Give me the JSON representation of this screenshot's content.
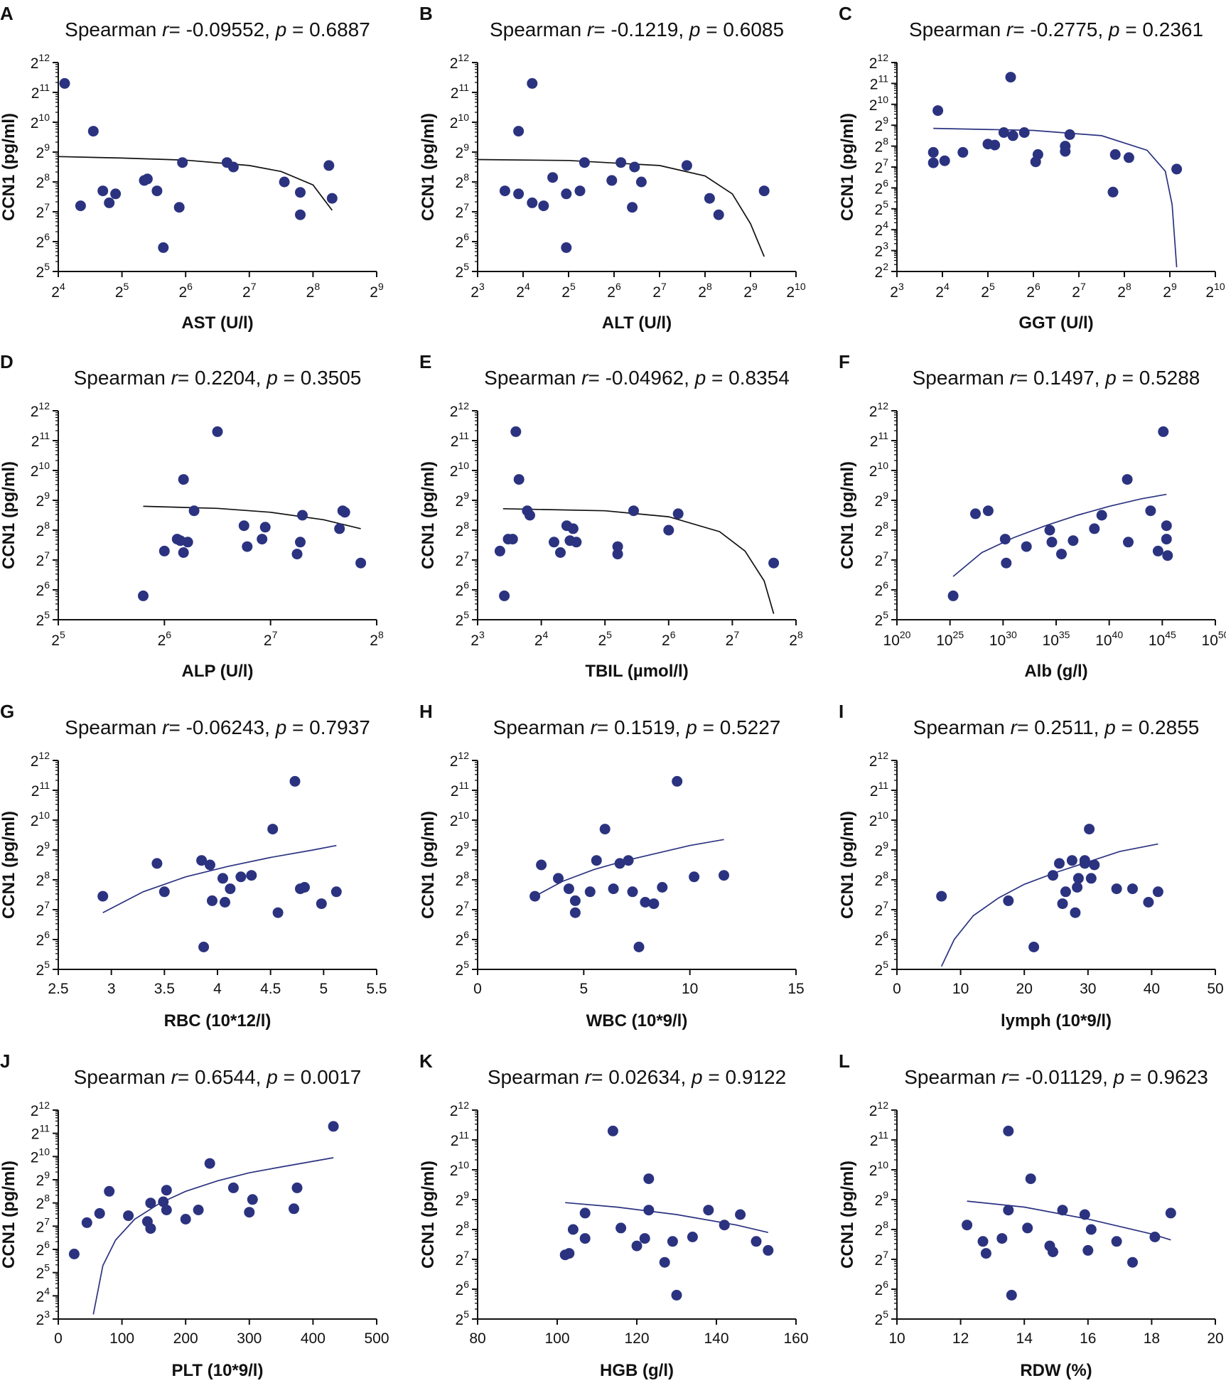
{
  "chart_data": [
    {
      "panel": "A",
      "type": "scatter",
      "title": {
        "prefix": "Spearman ",
        "r_symbol": "r",
        "r_value": "= -0.09552, ",
        "p_symbol": "p",
        "p_value": " = 0.6887"
      },
      "xlabel": "AST (U/l)",
      "ylabel": "CCN1 (pg/ml)",
      "xscale": "log2",
      "xlim": [
        4,
        9
      ],
      "ylim": [
        5,
        12
      ],
      "fit_color": "#111111",
      "x": [
        4.1,
        4.35,
        4.55,
        4.7,
        4.8,
        4.9,
        5.35,
        5.4,
        5.55,
        5.65,
        5.9,
        5.95,
        6.65,
        6.75,
        7.55,
        7.8,
        7.8,
        8.25,
        8.3
      ],
      "y": [
        11.3,
        7.2,
        9.7,
        7.7,
        7.3,
        7.6,
        8.05,
        8.1,
        7.7,
        5.8,
        7.15,
        8.65,
        8.65,
        8.5,
        8.0,
        7.65,
        6.9,
        8.55,
        7.45
      ],
      "fit": {
        "x": [
          4.0,
          5.0,
          6.0,
          7.0,
          7.5,
          8.0,
          8.3
        ],
        "y": [
          8.85,
          8.8,
          8.73,
          8.55,
          8.35,
          7.9,
          7.05
        ]
      }
    },
    {
      "panel": "B",
      "type": "scatter",
      "title": {
        "prefix": "Spearman ",
        "r_symbol": "r",
        "r_value": "= -0.1219, ",
        "p_symbol": "p",
        "p_value": " = 0.6085"
      },
      "xlabel": "ALT (U/l)",
      "ylabel": "CCN1 (pg/ml)",
      "xscale": "log2",
      "xlim": [
        3,
        10
      ],
      "ylim": [
        5,
        12
      ],
      "fit_color": "#111111",
      "x": [
        3.6,
        3.9,
        3.9,
        4.2,
        4.2,
        4.45,
        4.65,
        4.95,
        4.95,
        5.25,
        5.35,
        5.95,
        6.15,
        6.4,
        6.45,
        6.6,
        7.6,
        8.1,
        8.3,
        9.3
      ],
      "y": [
        7.7,
        9.7,
        7.6,
        11.3,
        7.3,
        7.2,
        8.15,
        7.6,
        5.8,
        7.7,
        8.65,
        8.05,
        8.65,
        7.15,
        8.5,
        8.0,
        8.55,
        7.45,
        6.9,
        7.7
      ],
      "fit": {
        "x": [
          3.0,
          5.0,
          7.0,
          8.0,
          8.6,
          9.0,
          9.3
        ],
        "y": [
          8.75,
          8.72,
          8.55,
          8.2,
          7.6,
          6.6,
          5.5
        ]
      }
    },
    {
      "panel": "C",
      "type": "scatter",
      "title": {
        "prefix": "Spearman ",
        "r_symbol": "r",
        "r_value": "= -0.2775, ",
        "p_symbol": "p",
        "p_value": " = 0.2361"
      },
      "xlabel": "GGT (U/l)",
      "ylabel": "CCN1 (pg/ml)",
      "xscale": "log2",
      "xlim": [
        3,
        10
      ],
      "ylim": [
        2,
        12
      ],
      "fit_color": "#2b3380",
      "x": [
        3.8,
        3.8,
        3.9,
        4.05,
        4.45,
        5.0,
        5.15,
        5.35,
        5.5,
        5.55,
        5.8,
        6.05,
        6.1,
        6.7,
        6.7,
        6.8,
        7.75,
        7.8,
        8.1,
        9.15
      ],
      "y": [
        7.7,
        7.2,
        9.7,
        7.3,
        7.7,
        8.1,
        8.05,
        8.65,
        11.3,
        8.5,
        8.65,
        7.25,
        7.6,
        8.0,
        7.75,
        8.55,
        5.8,
        7.6,
        7.45,
        6.9
      ],
      "fit": {
        "x": [
          3.8,
          6.0,
          7.5,
          8.5,
          8.9,
          9.05,
          9.15
        ],
        "y": [
          8.85,
          8.75,
          8.5,
          7.8,
          6.8,
          5.2,
          2.2
        ]
      }
    },
    {
      "panel": "D",
      "type": "scatter",
      "title": {
        "prefix": "Spearman ",
        "r_symbol": "r",
        "r_value": "= 0.2204, ",
        "p_symbol": "p",
        "p_value": " = 0.3505"
      },
      "xlabel": "ALP (U/l)",
      "ylabel": "CCN1 (pg/ml)",
      "xscale": "log2",
      "xlim": [
        5,
        8
      ],
      "ylim": [
        5,
        12
      ],
      "fit_color": "#111111",
      "x": [
        5.8,
        6.0,
        6.12,
        6.15,
        6.18,
        6.18,
        6.22,
        6.28,
        6.5,
        6.75,
        6.78,
        6.92,
        6.95,
        7.25,
        7.28,
        7.3,
        7.65,
        7.68,
        7.7,
        7.85
      ],
      "y": [
        5.8,
        7.3,
        7.7,
        7.65,
        9.7,
        7.25,
        7.6,
        8.65,
        11.3,
        8.15,
        7.45,
        7.7,
        8.1,
        7.2,
        7.6,
        8.5,
        8.05,
        8.65,
        8.6,
        6.9
      ],
      "fit": {
        "x": [
          5.8,
          6.5,
          7.0,
          7.5,
          7.85
        ],
        "y": [
          8.8,
          8.73,
          8.6,
          8.35,
          8.05
        ]
      }
    },
    {
      "panel": "E",
      "type": "scatter",
      "title": {
        "prefix": "Spearman ",
        "r_symbol": "r",
        "r_value": "= -0.04962, ",
        "p_symbol": "p",
        "p_value": " = 0.8354"
      },
      "xlabel": "TBIL (µmol/l)",
      "ylabel": "CCN1 (pg/ml)",
      "xscale": "log2",
      "xlim": [
        3,
        8
      ],
      "ylim": [
        5,
        12
      ],
      "fit_color": "#111111",
      "x": [
        3.35,
        3.42,
        3.48,
        3.55,
        3.6,
        3.65,
        3.78,
        3.82,
        4.2,
        4.3,
        4.4,
        4.45,
        4.5,
        4.55,
        5.2,
        5.2,
        5.45,
        6.0,
        6.15,
        7.65
      ],
      "y": [
        7.3,
        5.8,
        7.7,
        7.7,
        11.3,
        9.7,
        8.65,
        8.5,
        7.6,
        7.25,
        8.15,
        7.65,
        8.05,
        7.6,
        7.45,
        7.2,
        8.65,
        8.0,
        8.55,
        6.9
      ],
      "fit": {
        "x": [
          3.4,
          5.0,
          6.0,
          6.8,
          7.2,
          7.5,
          7.65
        ],
        "y": [
          8.72,
          8.65,
          8.45,
          7.95,
          7.3,
          6.3,
          5.2
        ]
      }
    },
    {
      "panel": "F",
      "type": "scatter",
      "title": {
        "prefix": "Spearman ",
        "r_symbol": "r",
        "r_value": "= 0.1497, ",
        "p_symbol": "p",
        "p_value": " = 0.5288"
      },
      "xlabel": "Alb (g/l)",
      "ylabel": "CCN1 (pg/ml)",
      "xscale": "log10",
      "xlim": [
        20,
        50
      ],
      "ylim": [
        5,
        12
      ],
      "fit_color": "#2b3380",
      "x": [
        25.3,
        27.4,
        28.6,
        30.2,
        30.3,
        32.2,
        34.4,
        34.6,
        35.5,
        36.6,
        38.6,
        39.3,
        41.7,
        41.8,
        43.9,
        44.6,
        45.1,
        45.4,
        45.4,
        45.5
      ],
      "y": [
        5.8,
        8.55,
        8.65,
        7.7,
        6.9,
        7.45,
        8.0,
        7.6,
        7.2,
        7.65,
        8.05,
        8.5,
        9.7,
        7.6,
        8.65,
        7.3,
        11.3,
        8.15,
        7.7,
        7.15
      ],
      "fit": {
        "x": [
          25.3,
          28,
          31,
          34,
          37,
          40,
          43,
          45.4
        ],
        "y": [
          6.45,
          7.25,
          7.75,
          8.15,
          8.5,
          8.8,
          9.05,
          9.2
        ]
      }
    },
    {
      "panel": "G",
      "type": "scatter",
      "title": {
        "prefix": "Spearman ",
        "r_symbol": "r",
        "r_value": "= -0.06243, ",
        "p_symbol": "p",
        "p_value": " = 0.7937"
      },
      "xlabel": "RBC (10*12/l)",
      "ylabel": "CCN1 (pg/ml)",
      "xscale": "linear",
      "xlim": [
        2.5,
        5.5
      ],
      "ylim": [
        5,
        12
      ],
      "fit_color": "#2b3380",
      "x": [
        2.92,
        3.43,
        3.5,
        3.85,
        3.87,
        3.93,
        3.95,
        4.05,
        4.07,
        4.12,
        4.22,
        4.32,
        4.52,
        4.57,
        4.73,
        4.78,
        4.82,
        4.98,
        5.12
      ],
      "y": [
        7.45,
        8.55,
        7.6,
        8.65,
        5.75,
        8.5,
        7.3,
        8.05,
        7.25,
        7.7,
        8.1,
        8.15,
        9.7,
        6.9,
        11.3,
        7.7,
        7.75,
        7.2,
        7.6
      ],
      "fit": {
        "x": [
          2.92,
          3.3,
          3.7,
          4.1,
          4.5,
          4.9,
          5.12
        ],
        "y": [
          6.9,
          7.6,
          8.1,
          8.45,
          8.75,
          9.0,
          9.15
        ]
      }
    },
    {
      "panel": "H",
      "type": "scatter",
      "title": {
        "prefix": "Spearman ",
        "r_symbol": "r",
        "r_value": "= 0.1519, ",
        "p_symbol": "p",
        "p_value": " = 0.5227"
      },
      "xlabel": "WBC  (10*9/l)",
      "ylabel": "CCN1 (pg/ml)",
      "xscale": "linear",
      "xlim": [
        0,
        15
      ],
      "ylim": [
        5,
        12
      ],
      "fit_color": "#2b3380",
      "x": [
        2.7,
        3.0,
        3.8,
        4.3,
        4.6,
        4.6,
        5.3,
        5.6,
        6.0,
        6.4,
        6.7,
        7.1,
        7.3,
        7.6,
        7.9,
        8.3,
        8.7,
        9.4,
        10.2,
        11.6
      ],
      "y": [
        7.45,
        8.5,
        8.05,
        7.7,
        6.9,
        7.3,
        7.6,
        8.65,
        9.7,
        7.7,
        8.55,
        8.65,
        7.6,
        5.75,
        7.25,
        7.2,
        7.75,
        11.3,
        8.1,
        8.15
      ],
      "fit": {
        "x": [
          2.7,
          4,
          5.5,
          7,
          8.5,
          10,
          11.6
        ],
        "y": [
          7.45,
          7.95,
          8.35,
          8.65,
          8.9,
          9.15,
          9.35
        ]
      }
    },
    {
      "panel": "I",
      "type": "scatter",
      "title": {
        "prefix": "Spearman ",
        "r_symbol": "r",
        "r_value": "= 0.2511, ",
        "p_symbol": "p",
        "p_value": " = 0.2855"
      },
      "xlabel": "lymph (10*9/l)",
      "ylabel": "CCN1 (pg/ml)",
      "xscale": "linear",
      "xlim": [
        0,
        50
      ],
      "ylim": [
        5,
        12
      ],
      "fit_color": "#2b3380",
      "x": [
        7,
        17.5,
        21.5,
        24.5,
        25.5,
        26,
        26.5,
        27.5,
        28,
        28.3,
        28.5,
        29.5,
        29.5,
        30.2,
        30.5,
        31,
        34.5,
        37,
        39.5,
        41
      ],
      "y": [
        7.45,
        7.3,
        5.75,
        8.15,
        8.55,
        7.2,
        7.6,
        8.65,
        6.9,
        7.75,
        8.05,
        8.65,
        8.55,
        9.7,
        8.05,
        8.5,
        7.7,
        7.7,
        7.25,
        7.6
      ],
      "fit": {
        "x": [
          7,
          9,
          12,
          16,
          20,
          25,
          30,
          35,
          41
        ],
        "y": [
          5.1,
          6.0,
          6.8,
          7.4,
          7.85,
          8.25,
          8.6,
          8.95,
          9.2
        ]
      }
    },
    {
      "panel": "J",
      "type": "scatter",
      "title": {
        "prefix": "Spearman ",
        "r_symbol": "r",
        "r_value": "= 0.6544, ",
        "p_symbol": "p",
        "p_value": " = 0.0017"
      },
      "xlabel": "PLT (10*9/l)",
      "ylabel": "CCN1 (pg/ml)",
      "xscale": "linear",
      "xlim": [
        0,
        500
      ],
      "ylim": [
        3,
        12
      ],
      "fit_color": "#2b3380",
      "x": [
        25,
        45,
        65,
        80,
        110,
        140,
        145,
        145,
        165,
        170,
        170,
        200,
        220,
        238,
        275,
        300,
        305,
        370,
        375,
        432
      ],
      "y": [
        5.8,
        7.15,
        7.55,
        8.5,
        7.45,
        7.2,
        8.0,
        6.9,
        8.05,
        7.7,
        8.55,
        7.3,
        7.7,
        9.7,
        8.65,
        7.6,
        8.15,
        7.75,
        8.65,
        11.3
      ],
      "fit": {
        "x": [
          55,
          70,
          90,
          120,
          160,
          200,
          250,
          300,
          350,
          432
        ],
        "y": [
          3.2,
          5.3,
          6.4,
          7.3,
          8.0,
          8.5,
          8.95,
          9.3,
          9.55,
          9.95
        ]
      }
    },
    {
      "panel": "K",
      "type": "scatter",
      "title": {
        "prefix": "Spearman ",
        "r_symbol": "r",
        "r_value": "= 0.02634, ",
        "p_symbol": "p",
        "p_value": " = 0.9122"
      },
      "xlabel": "HGB (g/l)",
      "ylabel": "CCN1 (pg/ml)",
      "xscale": "linear",
      "xlim": [
        80,
        160
      ],
      "ylim": [
        5,
        12
      ],
      "fit_color": "#2b3380",
      "x": [
        102,
        103,
        104,
        107,
        107,
        114,
        116,
        120,
        122,
        123,
        123,
        127,
        129,
        130,
        134,
        138,
        142,
        146,
        150,
        153
      ],
      "y": [
        7.15,
        7.2,
        8.0,
        8.55,
        7.7,
        11.3,
        8.05,
        7.45,
        7.7,
        9.7,
        8.65,
        6.9,
        7.6,
        5.8,
        7.75,
        8.65,
        8.15,
        8.5,
        7.6,
        7.3
      ],
      "fit": {
        "x": [
          102,
          115,
          130,
          145,
          153
        ],
        "y": [
          8.9,
          8.75,
          8.5,
          8.15,
          7.9
        ]
      }
    },
    {
      "panel": "L",
      "type": "scatter",
      "title": {
        "prefix": "Spearman ",
        "r_symbol": "r",
        "r_value": "= -0.01129, ",
        "p_symbol": "p",
        "p_value": " = 0.9623"
      },
      "xlabel": "RDW (%)",
      "ylabel": "CCN1 (pg/ml)",
      "xscale": "linear",
      "xlim": [
        10,
        20
      ],
      "ylim": [
        5,
        12
      ],
      "fit_color": "#2b3380",
      "x": [
        12.2,
        12.7,
        12.8,
        13.3,
        13.5,
        13.5,
        13.6,
        14.1,
        14.2,
        14.8,
        14.9,
        15.2,
        15.9,
        16.0,
        16.1,
        16.9,
        17.4,
        18.1,
        18.6
      ],
      "y": [
        8.15,
        7.6,
        7.2,
        7.7,
        11.3,
        8.65,
        5.8,
        8.05,
        9.7,
        7.45,
        7.25,
        8.65,
        8.5,
        7.3,
        8.0,
        7.6,
        6.9,
        7.75,
        8.55
      ],
      "fit": {
        "x": [
          12.2,
          14,
          16,
          18,
          18.6
        ],
        "y": [
          8.95,
          8.75,
          8.35,
          7.85,
          7.65
        ]
      }
    }
  ]
}
